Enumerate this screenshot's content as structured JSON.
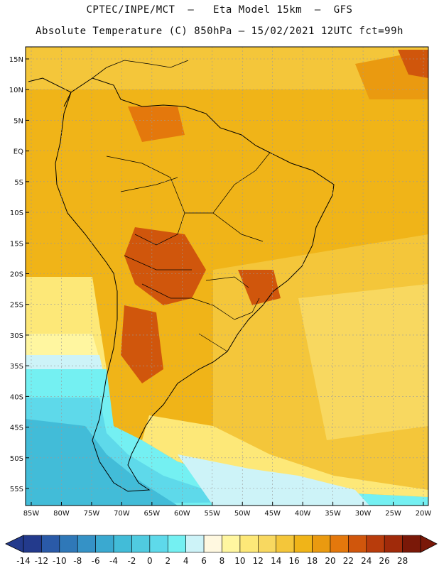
{
  "header": {
    "line1": "CPTEC/INPE/MCT  –   Eta Model 15km  –  GFS",
    "line2": "Absolute Temperature (C) 850hPa – 15/02/2021 12UTC fct=99h"
  },
  "map": {
    "lat_labels": [
      "15N",
      "10N",
      "5N",
      "EQ",
      "5S",
      "10S",
      "15S",
      "20S",
      "25S",
      "30S",
      "35S",
      "40S",
      "45S",
      "50S",
      "55S"
    ],
    "lat_values": [
      15,
      10,
      5,
      0,
      -5,
      -10,
      -15,
      -20,
      -25,
      -30,
      -35,
      -40,
      -45,
      -50,
      -55
    ],
    "lon_labels": [
      "85W",
      "80W",
      "75W",
      "70W",
      "65W",
      "60W",
      "55W",
      "50W",
      "45W",
      "40W",
      "35W",
      "30W",
      "25W",
      "20W"
    ],
    "lon_values": [
      -85,
      -80,
      -75,
      -70,
      -65,
      -60,
      -55,
      -50,
      -45,
      -40,
      -35,
      -30,
      -25,
      -20
    ]
  },
  "colorbar": {
    "labels": [
      "-14",
      "-12",
      "-10",
      "-8",
      "-6",
      "-4",
      "-2",
      "0",
      "2",
      "4",
      "6",
      "8",
      "10",
      "12",
      "14",
      "16",
      "18",
      "20",
      "22",
      "24",
      "26",
      "28"
    ],
    "colors": [
      "#233a8c",
      "#2a5aa8",
      "#2f78b8",
      "#3592c6",
      "#3aa9d0",
      "#42bcd8",
      "#50cbe0",
      "#5ed9ea",
      "#74f0f2",
      "#cdf3f8",
      "#fff8e0",
      "#fff6a0",
      "#fde878",
      "#f8d860",
      "#f4c63a",
      "#f0b418",
      "#ea9a10",
      "#e4780c",
      "#d0560c",
      "#b83c0c",
      "#a02a0a",
      "#7a1808"
    ]
  }
}
